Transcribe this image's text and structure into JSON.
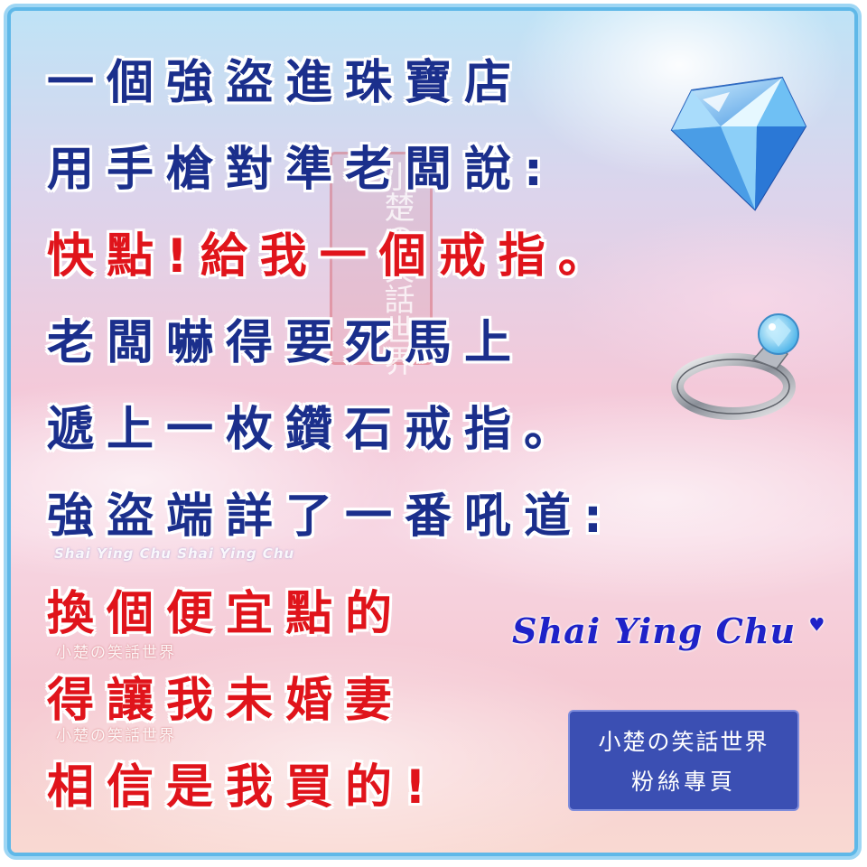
{
  "lines": [
    {
      "text": "一個強盜進珠寶店",
      "color": "#1b2f8c"
    },
    {
      "text": "用手槍對準老闆說:",
      "color": "#1b2f8c"
    },
    {
      "text": "快點!給我一個戒指。",
      "color": "#e0141b"
    },
    {
      "text": "老闆嚇得要死馬上",
      "color": "#1b2f8c"
    },
    {
      "text": "遞上一枚鑽石戒指。",
      "color": "#1b2f8c"
    },
    {
      "text": "強盜端詳了一番吼道:",
      "color": "#1b2f8c"
    },
    {
      "text": "換個便宜點的",
      "color": "#e0141b"
    },
    {
      "text": "得讓我未婚妻",
      "color": "#e0141b"
    },
    {
      "text": "相信是我買的!",
      "color": "#e0141b"
    }
  ],
  "seal_text": "小楚の笑話世界",
  "watermark_en": "Shai Ying Chu  Shai Ying Chu",
  "watermark_cn": "小楚の笑話世界",
  "signature": "Shai Ying Chu",
  "stamp": {
    "line1": "小楚の笑話世界",
    "line2": "粉絲專頁"
  },
  "icons": [
    "diamond-icon",
    "diamond-ring-icon"
  ]
}
